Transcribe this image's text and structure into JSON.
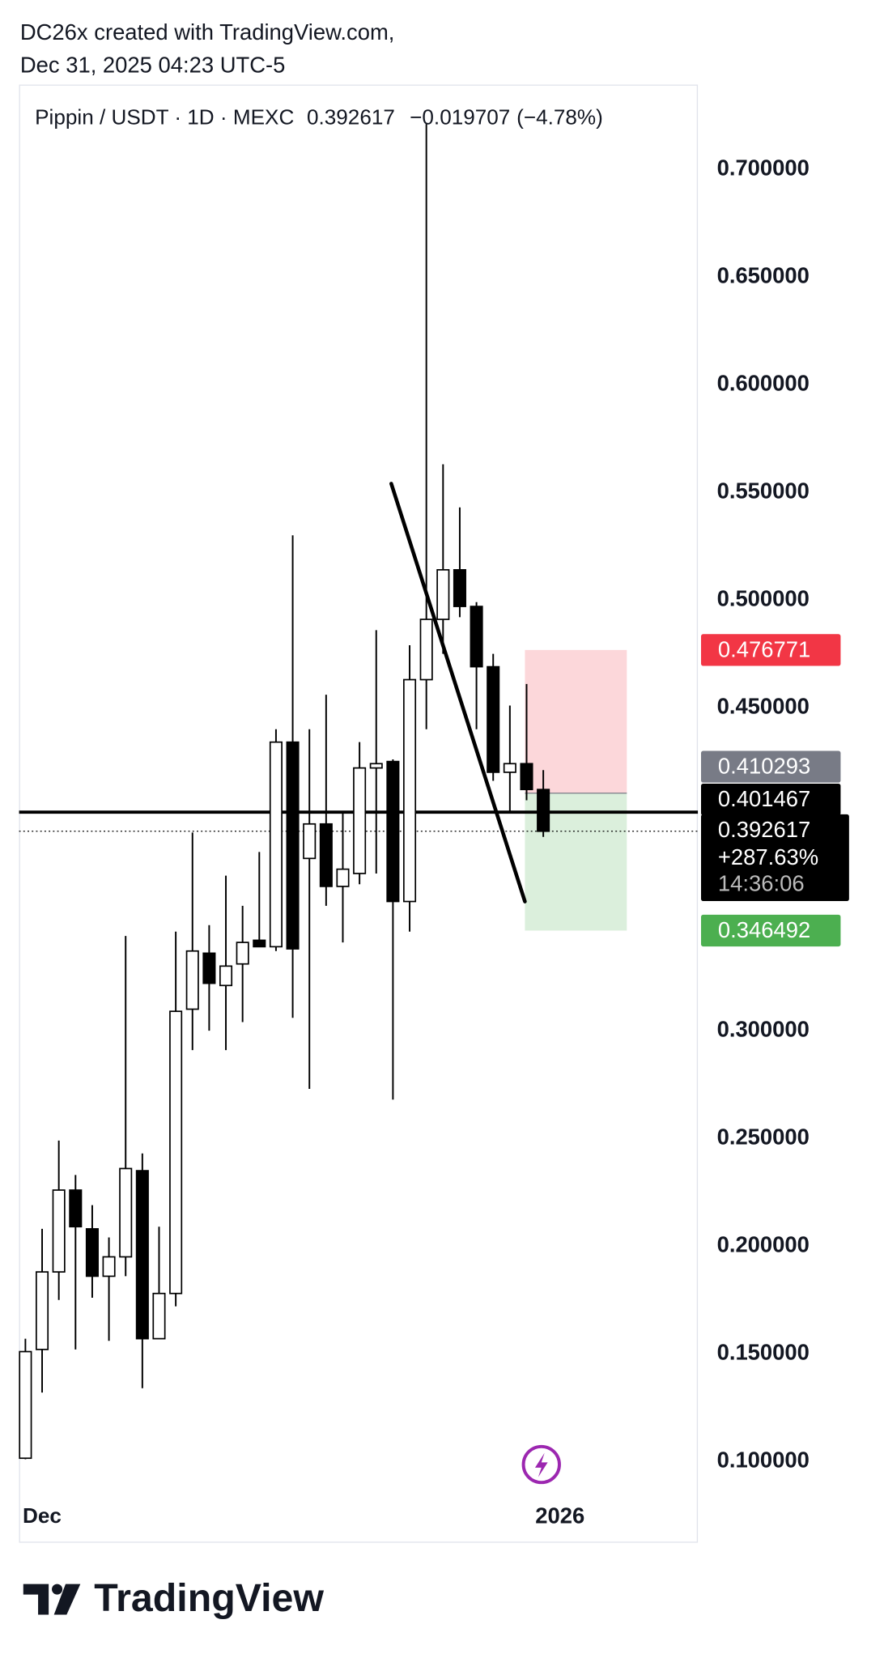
{
  "header": {
    "watermark": "DC26x created with TradingView.com,",
    "timestamp": "Dec 31, 2025 04:23 UTC-5"
  },
  "chart_data": {
    "type": "candlestick",
    "title": "Pippin / USDT · 1D · MEXC",
    "change": "−0.019707",
    "change_pct": "(−4.78%)",
    "categories": [
      null,
      "Dec",
      null,
      null,
      null,
      null,
      null,
      null,
      null,
      null,
      null,
      null,
      null,
      null,
      null,
      null,
      null,
      null,
      null,
      null,
      null,
      null,
      null,
      null,
      null,
      null,
      null,
      null,
      null,
      null,
      null,
      null
    ],
    "x_end_label": "2026",
    "series": [
      {
        "up_color": "#ffffff",
        "down_color": "#000000",
        "open": [
          0.1015,
          0.152,
          0.188,
          0.226,
          0.208,
          0.186,
          0.195,
          0.235,
          0.157,
          0.178,
          0.31,
          0.336,
          0.321,
          0.331,
          0.342,
          0.339,
          0.434,
          0.38,
          0.396,
          0.367,
          0.373,
          0.422,
          0.425,
          0.36,
          0.463,
          0.491,
          0.514,
          0.497,
          0.469,
          0.42,
          0.424,
          0.412
        ],
        "high": [
          0.157,
          0.208,
          0.249,
          0.233,
          0.219,
          0.204,
          0.344,
          0.243,
          0.209,
          0.346,
          0.392,
          0.349,
          0.372,
          0.358,
          0.383,
          0.44,
          0.53,
          0.44,
          0.456,
          0.401,
          0.434,
          0.486,
          0.426,
          0.479,
          0.721,
          0.563,
          0.543,
          0.499,
          0.475,
          0.451,
          0.461,
          0.421
        ],
        "low": [
          0.101,
          0.132,
          0.175,
          0.152,
          0.176,
          0.156,
          0.186,
          0.134,
          0.157,
          0.172,
          0.291,
          0.3,
          0.291,
          0.304,
          0.339,
          0.337,
          0.306,
          0.273,
          0.358,
          0.341,
          0.368,
          0.373,
          0.268,
          0.346,
          0.44,
          0.475,
          0.492,
          0.44,
          0.416,
          0.402,
          0.407,
          0.39
        ],
        "close": [
          0.151,
          0.188,
          0.226,
          0.209,
          0.186,
          0.195,
          0.236,
          0.157,
          0.178,
          0.309,
          0.337,
          0.322,
          0.33,
          0.341,
          0.339,
          0.434,
          0.338,
          0.396,
          0.367,
          0.375,
          0.422,
          0.424,
          0.36,
          0.463,
          0.491,
          0.514,
          0.497,
          0.469,
          0.42,
          0.424,
          0.412,
          0.392617
        ]
      }
    ],
    "ylim": [
      0.0814,
      0.7393
    ],
    "yticks": [
      {
        "value": 0.7,
        "label": "0.700000"
      },
      {
        "value": 0.65,
        "label": "0.650000"
      },
      {
        "value": 0.6,
        "label": "0.600000"
      },
      {
        "value": 0.55,
        "label": "0.550000"
      },
      {
        "value": 0.5,
        "label": "0.500000"
      },
      {
        "value": 0.45,
        "label": "0.450000"
      },
      {
        "value": 0.3,
        "label": "0.300000"
      },
      {
        "value": 0.25,
        "label": "0.250000"
      },
      {
        "value": 0.2,
        "label": "0.200000"
      },
      {
        "value": 0.15,
        "label": "0.150000"
      },
      {
        "value": 0.1,
        "label": "0.100000"
      }
    ],
    "horizontal_line": 0.401467,
    "price_line": {
      "value": 0.392617,
      "change_label": "+287.63%",
      "countdown": "14:36:06"
    },
    "trendline": {
      "x": [
        21.9,
        29.9
      ],
      "values": [
        0.554,
        0.36
      ]
    },
    "position": {
      "entry": 0.410293,
      "stop": 0.476771,
      "target": 0.346492,
      "x": [
        29.9,
        36
      ]
    }
  },
  "footer": {
    "brand": "TradingView"
  }
}
